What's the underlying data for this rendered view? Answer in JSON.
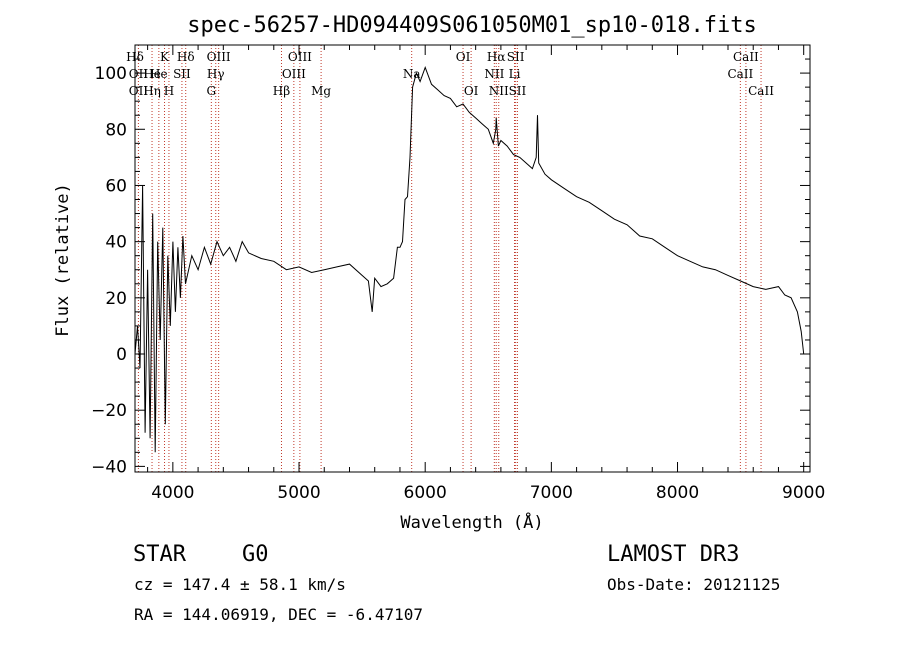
{
  "chart_data": {
    "type": "line",
    "title": "spec-56257-HD094409S061050M01_sp10-018.fits",
    "xlabel": "Wavelength (Å)",
    "ylabel": "Flux (relative)",
    "xlim": [
      3700,
      9050
    ],
    "ylim": [
      -42,
      110
    ],
    "xticks": [
      4000,
      5000,
      6000,
      7000,
      8000,
      9000
    ],
    "xtick_labels": [
      "4000",
      "5000",
      "6000",
      "7000",
      "8000",
      "9000"
    ],
    "yticks": [
      -40,
      -20,
      0,
      20,
      40,
      60,
      80,
      100
    ],
    "ytick_labels": [
      "−40",
      "−20",
      "0",
      "20",
      "40",
      "60",
      "80",
      "100"
    ],
    "series": [
      {
        "name": "spectrum",
        "x": [
          3700,
          3720,
          3740,
          3760,
          3780,
          3800,
          3820,
          3840,
          3860,
          3880,
          3900,
          3920,
          3940,
          3960,
          3980,
          4000,
          4020,
          4040,
          4060,
          4080,
          4100,
          4150,
          4200,
          4250,
          4300,
          4350,
          4400,
          4450,
          4500,
          4550,
          4600,
          4700,
          4800,
          4900,
          5000,
          5100,
          5200,
          5300,
          5400,
          5500,
          5550,
          5580,
          5600,
          5650,
          5700,
          5750,
          5780,
          5800,
          5820,
          5840,
          5860,
          5880,
          5900,
          5930,
          5960,
          6000,
          6050,
          6100,
          6150,
          6200,
          6250,
          6300,
          6350,
          6400,
          6450,
          6500,
          6540,
          6560,
          6563,
          6580,
          6600,
          6650,
          6700,
          6750,
          6800,
          6850,
          6880,
          6890,
          6900,
          6950,
          7000,
          7100,
          7200,
          7300,
          7400,
          7500,
          7600,
          7700,
          7800,
          7900,
          8000,
          8100,
          8200,
          8300,
          8400,
          8500,
          8600,
          8700,
          8800,
          8850,
          8900,
          8950,
          8980,
          9000
        ],
        "y": [
          0,
          10,
          -5,
          60,
          -28,
          30,
          -30,
          50,
          -35,
          40,
          5,
          45,
          -25,
          35,
          10,
          40,
          15,
          38,
          20,
          42,
          25,
          35,
          30,
          38,
          32,
          40,
          35,
          38,
          33,
          40,
          36,
          34,
          33,
          30,
          31,
          29,
          30,
          31,
          32,
          28,
          26,
          15,
          27,
          24,
          25,
          27,
          38,
          38,
          40,
          55,
          56,
          70,
          95,
          100,
          97,
          102,
          96,
          94,
          92,
          91,
          88,
          89,
          86,
          84,
          82,
          80,
          75,
          80,
          84,
          74,
          76,
          74,
          71,
          70,
          68,
          66,
          70,
          85,
          68,
          64,
          62,
          59,
          56,
          54,
          51,
          48,
          46,
          42,
          41,
          38,
          35,
          33,
          31,
          30,
          28,
          26,
          24,
          23,
          24,
          21,
          20,
          15,
          8,
          0
        ]
      }
    ],
    "lines": [
      {
        "label": "Hδ",
        "x": 3700,
        "row": 0
      },
      {
        "label": "OII",
        "x": 3727,
        "row": 1
      },
      {
        "label": "OII",
        "x": 3727,
        "row": 2
      },
      {
        "label": "He",
        "x": 3835,
        "row": 1
      },
      {
        "label": "Hη",
        "x": 3835,
        "row": 2
      },
      {
        "label": "K",
        "x": 3934,
        "row": 0
      },
      {
        "label": "He",
        "x": 3889,
        "row": 1
      },
      {
        "label": "H",
        "x": 3969,
        "row": 2
      },
      {
        "label": "Hδ",
        "x": 4102,
        "row": 0
      },
      {
        "label": "SII",
        "x": 4072,
        "row": 1
      },
      {
        "label": "OIII",
        "x": 4363,
        "row": 0
      },
      {
        "label": "Hγ",
        "x": 4340,
        "row": 1
      },
      {
        "label": "G",
        "x": 4305,
        "row": 2
      },
      {
        "label": "Hβ",
        "x": 4861,
        "row": 2
      },
      {
        "label": "OIII",
        "x": 5007,
        "row": 0
      },
      {
        "label": "OIII",
        "x": 4959,
        "row": 1
      },
      {
        "label": "Mg",
        "x": 5175,
        "row": 2
      },
      {
        "label": "Na",
        "x": 5893,
        "row": 1
      },
      {
        "label": "OI",
        "x": 6300,
        "row": 0
      },
      {
        "label": "OI",
        "x": 6364,
        "row": 2
      },
      {
        "label": "Hα",
        "x": 6563,
        "row": 0
      },
      {
        "label": "SII",
        "x": 6717,
        "row": 0
      },
      {
        "label": "NII",
        "x": 6548,
        "row": 1
      },
      {
        "label": "Li",
        "x": 6708,
        "row": 1
      },
      {
        "label": "NII",
        "x": 6583,
        "row": 2
      },
      {
        "label": "SII",
        "x": 6731,
        "row": 2
      },
      {
        "label": "CaII",
        "x": 8542,
        "row": 0
      },
      {
        "label": "CaII",
        "x": 8498,
        "row": 1
      },
      {
        "label": "CaII",
        "x": 8662,
        "row": 2
      }
    ]
  },
  "footer": {
    "object_class": "STAR",
    "subclass": "G0",
    "survey": "LAMOST DR3",
    "redshift": "cz = 147.4 ± 58.1 km/s",
    "obs_date": "Obs-Date: 20121125",
    "coordinates": "RA = 144.06919, DEC =  -6.47107"
  }
}
